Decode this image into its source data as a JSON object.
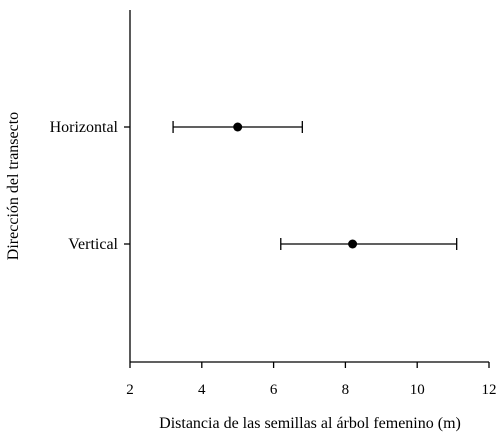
{
  "chart_data": {
    "type": "dot-errorbar",
    "orientation": "horizontal",
    "title": "",
    "xlabel": "Distancia de las semillas al árbol femenino (m)",
    "ylabel": "Dirección del transecto",
    "xlim": [
      2,
      12
    ],
    "xticks": [
      2,
      4,
      6,
      8,
      10,
      12
    ],
    "xtick_labels": [
      "2",
      "4",
      "6",
      "8",
      "10",
      "12"
    ],
    "grid": false,
    "categories": [
      "Horizontal",
      "Vertical"
    ],
    "values": [
      5.0,
      8.2
    ],
    "error_low": [
      3.2,
      6.2
    ],
    "error_high": [
      6.8,
      11.1
    ],
    "marker_color": "#000000"
  }
}
